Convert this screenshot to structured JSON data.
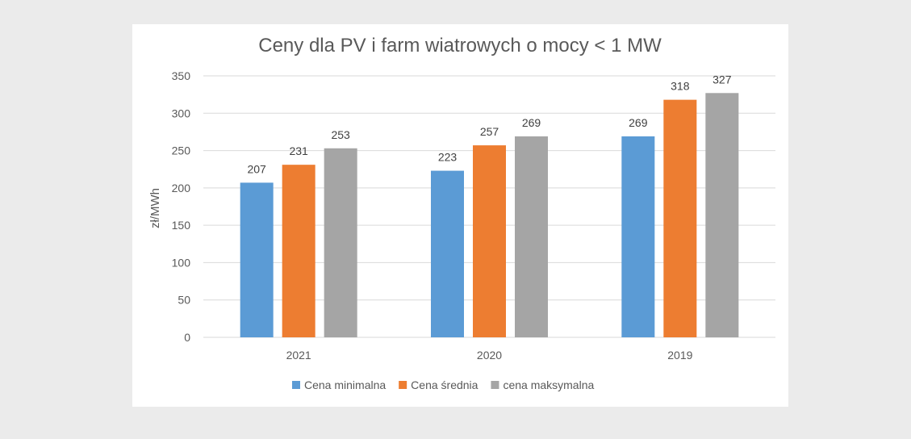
{
  "chart_data": {
    "type": "bar",
    "title": "Ceny dla PV i farm wiatrowych o mocy < 1 MW",
    "xlabel": "",
    "ylabel": "zł/MWh",
    "categories": [
      "2021",
      "2020",
      "2019"
    ],
    "series": [
      {
        "name": "Cena minimalna",
        "values": [
          207,
          223,
          269
        ],
        "color": "#5b9bd5"
      },
      {
        "name": "Cena średnia",
        "values": [
          231,
          257,
          318
        ],
        "color": "#ed7d31"
      },
      {
        "name": "cena maksymalna",
        "values": [
          253,
          269,
          327
        ],
        "color": "#a5a5a5"
      }
    ],
    "ylim": [
      0,
      350
    ],
    "yticks": [
      0,
      50,
      100,
      150,
      200,
      250,
      300,
      350
    ],
    "grid": true,
    "legend": "bottom",
    "data_labels": true
  }
}
